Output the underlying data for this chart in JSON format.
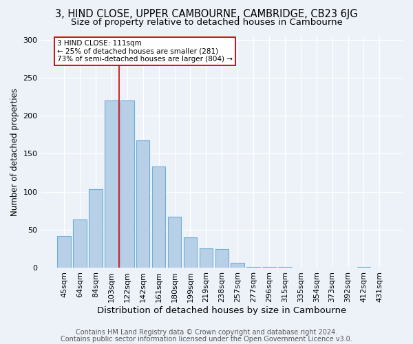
{
  "title1": "3, HIND CLOSE, UPPER CAMBOURNE, CAMBRIDGE, CB23 6JG",
  "title2": "Size of property relative to detached houses in Cambourne",
  "xlabel": "Distribution of detached houses by size in Cambourne",
  "ylabel": "Number of detached properties",
  "categories": [
    "45sqm",
    "64sqm",
    "84sqm",
    "103sqm",
    "122sqm",
    "142sqm",
    "161sqm",
    "180sqm",
    "199sqm",
    "219sqm",
    "238sqm",
    "257sqm",
    "277sqm",
    "296sqm",
    "315sqm",
    "335sqm",
    "354sqm",
    "373sqm",
    "392sqm",
    "412sqm",
    "431sqm"
  ],
  "values": [
    42,
    63,
    103,
    220,
    220,
    168,
    133,
    67,
    40,
    25,
    24,
    6,
    1,
    1,
    1,
    0,
    0,
    0,
    0,
    1,
    0
  ],
  "bar_color": "#b8cfe8",
  "bar_edge_color": "#6baed6",
  "vline_x": 3.5,
  "vline_color": "#cc0000",
  "annotation_text": "3 HIND CLOSE: 111sqm\n← 25% of detached houses are smaller (281)\n73% of semi-detached houses are larger (804) →",
  "annotation_box_color": "#ffffff",
  "annotation_box_edge": "#cc0000",
  "footer1": "Contains HM Land Registry data © Crown copyright and database right 2024.",
  "footer2": "Contains public sector information licensed under the Open Government Licence v3.0.",
  "bg_color": "#edf2f9",
  "ylim": [
    0,
    305
  ],
  "yticks": [
    0,
    50,
    100,
    150,
    200,
    250,
    300
  ],
  "title1_fontsize": 10.5,
  "title2_fontsize": 9.5,
  "xlabel_fontsize": 9.5,
  "ylabel_fontsize": 8.5,
  "footer_fontsize": 7,
  "tick_fontsize": 8
}
